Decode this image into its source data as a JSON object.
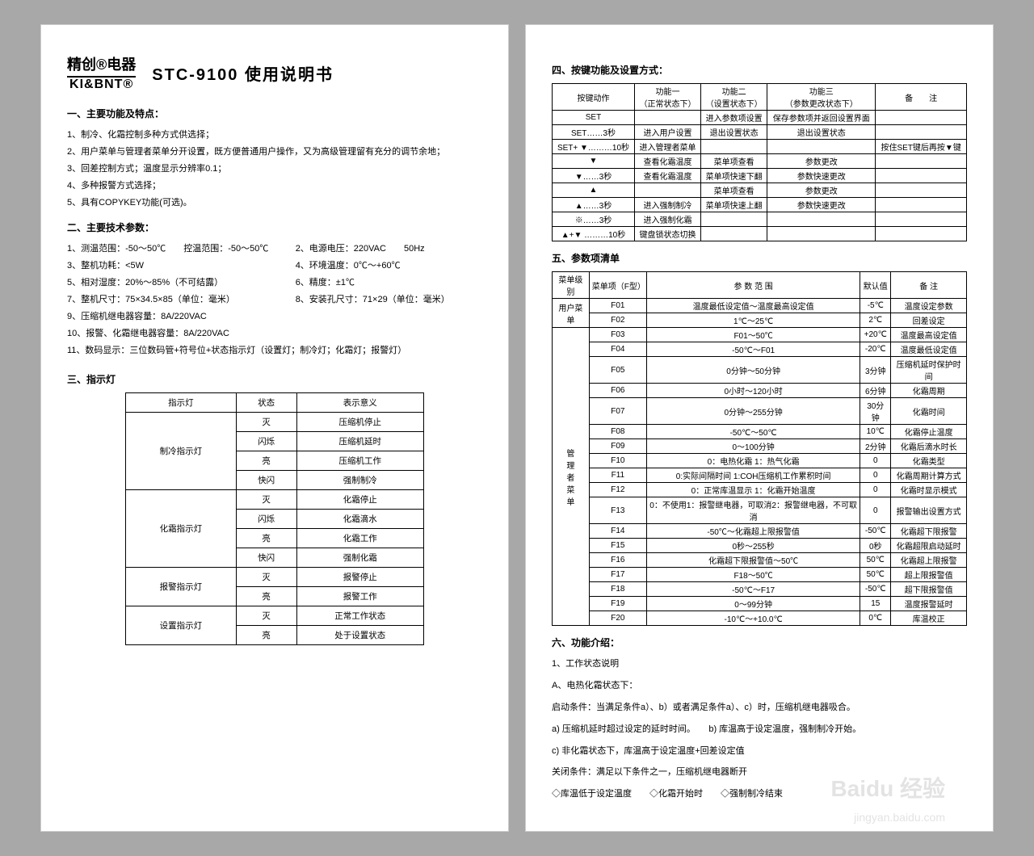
{
  "brand": {
    "line1": "精创®电器",
    "line2": "KI&BNT®"
  },
  "title": "STC-9100  使用说明书",
  "sec1": {
    "h": "一、主要功能及特点：",
    "items": [
      "1、制冷、化霜控制多种方式供选择；",
      "2、用户菜单与管理者菜单分开设置，既方便普通用户操作，又为高级管理留有充分的调节余地；",
      "3、回差控制方式；温度显示分辨率0.1；",
      "4、多种报警方式选择；",
      "5、具有COPYKEY功能(可选)。"
    ]
  },
  "sec2": {
    "h": "二、主要技术参数：",
    "rows": [
      [
        "1、测温范围：-50～50℃　　控温范围：-50～50℃",
        "2、电源电压：220VAC　　50Hz"
      ],
      [
        "3、整机功耗：<5W",
        "4、环境温度：0℃～+60℃"
      ],
      [
        "5、相对湿度：20%～85%（不可结露）",
        "6、精度：±1℃"
      ],
      [
        "7、整机尺寸：75×34.5×85（单位：毫米）",
        "8、安装孔尺寸：71×29（单位：毫米）"
      ]
    ],
    "single": [
      "9、压缩机继电器容量：8A/220VAC",
      "10、报警、化霜继电器容量：8A/220VAC",
      "11、数码显示：三位数码管+符号位+状态指示灯（设置灯；制冷灯；化霜灯；报警灯）"
    ]
  },
  "sec3": {
    "h": "三、指示灯",
    "header": [
      "指示灯",
      "状态",
      "表示意义"
    ],
    "groups": [
      {
        "name": "制冷指示灯",
        "rows": [
          [
            "灭",
            "压缩机停止"
          ],
          [
            "闪烁",
            "压缩机延时"
          ],
          [
            "亮",
            "压缩机工作"
          ],
          [
            "快闪",
            "强制制冷"
          ]
        ]
      },
      {
        "name": "化霜指示灯",
        "rows": [
          [
            "灭",
            "化霜停止"
          ],
          [
            "闪烁",
            "化霜滴水"
          ],
          [
            "亮",
            "化霜工作"
          ],
          [
            "快闪",
            "强制化霜"
          ]
        ]
      },
      {
        "name": "报警指示灯",
        "rows": [
          [
            "灭",
            "报警停止"
          ],
          [
            "亮",
            "报警工作"
          ]
        ]
      },
      {
        "name": "设置指示灯",
        "rows": [
          [
            "灭",
            "正常工作状态"
          ],
          [
            "亮",
            "处于设置状态"
          ]
        ]
      }
    ]
  },
  "sec4": {
    "h": "四、按键功能及设置方式：",
    "header": [
      "按键动作",
      "功能一\n（正常状态下）",
      "功能二\n（设置状态下）",
      "功能三\n（参数更改状态下）",
      "备　　注"
    ],
    "rows": [
      [
        "SET",
        "",
        "进入参数项设置",
        "保存参数项并返回设置界面",
        ""
      ],
      [
        "SET……3秒",
        "进入用户设置",
        "退出设置状态",
        "退出设置状态",
        ""
      ],
      [
        "SET+ ▼………10秒",
        "进入管理者菜单",
        "",
        "",
        "按住SET键后再按▼键"
      ],
      [
        "▼",
        "查看化霜温度",
        "菜单项查看",
        "参数更改",
        ""
      ],
      [
        "▼……3秒",
        "查看化霜温度",
        "菜单项快速下翻",
        "参数快速更改",
        ""
      ],
      [
        "▲",
        "",
        "菜单项查看",
        "参数更改",
        ""
      ],
      [
        "▲……3秒",
        "进入强制制冷",
        "菜单项快速上翻",
        "参数快速更改",
        ""
      ],
      [
        "※……3秒",
        "进入强制化霜",
        "",
        "",
        ""
      ],
      [
        "▲+▼ ………10秒",
        "键盘锁状态切换",
        "",
        "",
        ""
      ]
    ]
  },
  "sec5": {
    "h": "五、参数项清单",
    "header": [
      "菜单级别",
      "菜单项（F型）",
      "参 数 范 围",
      "默认值",
      "备 注"
    ],
    "user": {
      "name": "用户菜单",
      "rows": [
        [
          "F01",
          "温度最低设定值～温度最高设定值",
          "-5℃",
          "温度设定参数"
        ],
        [
          "F02",
          "1℃～25℃",
          "2℃",
          "回差设定"
        ]
      ]
    },
    "admin": {
      "name": "管\n理\n者\n菜\n单",
      "rows": [
        [
          "F03",
          "F01～50℃",
          "+20℃",
          "温度最高设定值"
        ],
        [
          "F04",
          "-50℃～F01",
          "-20℃",
          "温度最低设定值"
        ],
        [
          "F05",
          "0分钟～50分钟",
          "3分钟",
          "压缩机延时保护时间"
        ],
        [
          "F06",
          "0小时～120小时",
          "6分钟",
          "化霜周期"
        ],
        [
          "F07",
          "0分钟～255分钟",
          "30分钟",
          "化霜时间"
        ],
        [
          "F08",
          "-50℃～50℃",
          "10℃",
          "化霜停止温度"
        ],
        [
          "F09",
          "0～100分钟",
          "2分钟",
          "化霜后滴水时长"
        ],
        [
          "F10",
          "0：电热化霜 1：热气化霜",
          "0",
          "化霜类型"
        ],
        [
          "F11",
          "0:实际间隔时间 1:COH压缩机工作累积时间",
          "0",
          "化霜周期计算方式"
        ],
        [
          "F12",
          "0：正常库温显示  1：化霜开始温度",
          "0",
          "化霜时显示模式"
        ],
        [
          "F13",
          "0：不使用1：报警继电器，可取消2：报警继电器，不可取消",
          "0",
          "报警输出设置方式"
        ],
        [
          "F14",
          "-50℃～化霜超上限报警值",
          "-50℃",
          "化霜超下限报警"
        ],
        [
          "F15",
          "0秒～255秒",
          "0秒",
          "化霜超限启动延时"
        ],
        [
          "F16",
          "化霜超下限报警值～50℃",
          "50℃",
          "化霜超上限报警"
        ],
        [
          "F17",
          "F18～50℃",
          "50℃",
          "超上限报警值"
        ],
        [
          "F18",
          "-50℃～F17",
          "-50℃",
          "超下限报警值"
        ],
        [
          "F19",
          "0～99分钟",
          "15",
          "温度报警延时"
        ],
        [
          "F20",
          "-10℃～+10.0℃",
          "0℃",
          "库温校正"
        ]
      ]
    }
  },
  "sec6": {
    "h": "六、功能介绍：",
    "lines": [
      "1、工作状态说明",
      "A、电热化霜状态下：",
      "启动条件：当满足条件a）、b）或者满足条件a）、c）时，压缩机继电器吸合。",
      "a) 压缩机延时超过设定的延时时间。　　b) 库温高于设定温度，强制制冷开始。",
      "c) 非化霜状态下，库温高于设定温度+回差设定值",
      "关闭条件：满足以下条件之一，压缩机继电器断开",
      "◇库温低于设定温度　　◇化霜开始时　　◇强制制冷结束"
    ]
  },
  "watermark": "Baidu 经验",
  "watermark2": "jingyan.baidu.com"
}
